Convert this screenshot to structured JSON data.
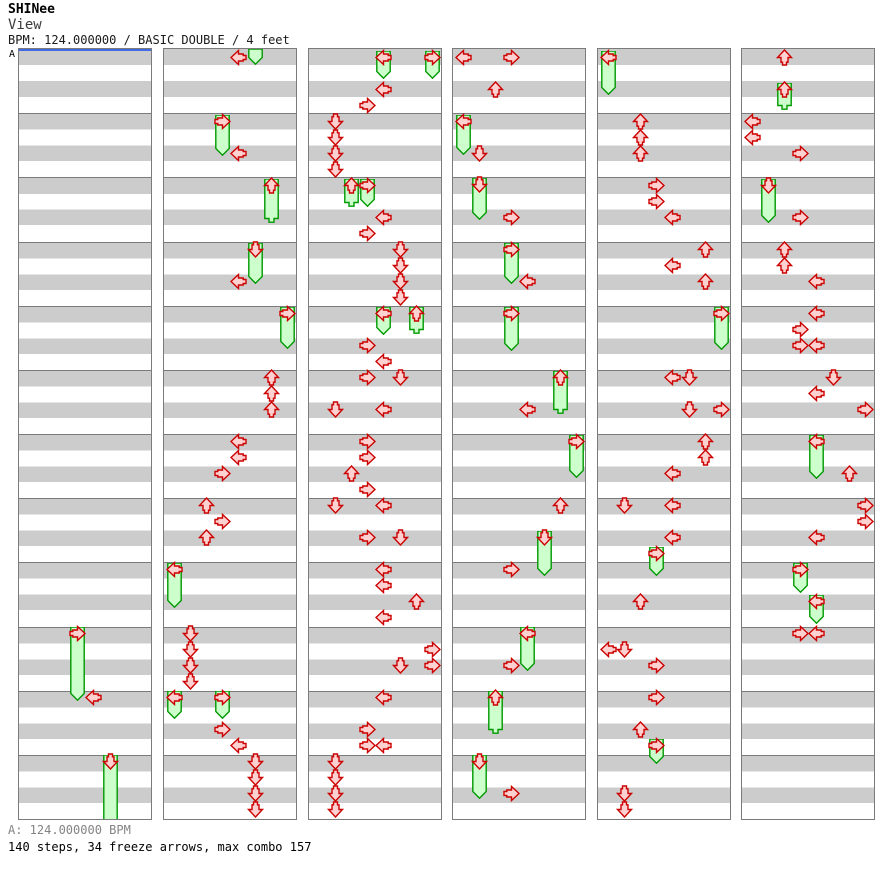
{
  "header": {
    "title": "SHINee",
    "subtitle": "View",
    "info": "BPM: 124.000000 / BASIC DOUBLE / 4 feet",
    "marker_label": "A"
  },
  "footer": {
    "bpm_line": "A: 124.000000 BPM",
    "stats_line": "140 steps, 34 freeze arrows, max combo 157"
  },
  "colors": {
    "arrow_fill": "#ffd2d2",
    "arrow_stroke": "#cc0000",
    "freeze_fill": "#ccffcc",
    "freeze_stroke": "#009900",
    "stripe_gray": "#cccccc",
    "panel_border": "#7b7b7b",
    "marker_blue": "#4169e1",
    "footer_gray": "#848484"
  },
  "legend": {
    "arrows_format": "[lane, direction, y_center_px]",
    "freezes_format": "[lane, direction, y_start_px, y_end_px, has_head_arrow]",
    "lanes": [
      "p1-left",
      "p1-down",
      "p1-up",
      "p1-right",
      "p2-left",
      "p2-down",
      "p2-up",
      "p2-right"
    ]
  },
  "panels": [
    {
      "arrows": [
        [
          4,
          "left",
          648
        ]
      ],
      "freezes": [
        [
          3,
          "right",
          584,
          652,
          true
        ],
        [
          5,
          "down",
          712,
          778,
          true
        ]
      ]
    },
    {
      "arrows": [
        [
          4,
          "left",
          8
        ],
        [
          4,
          "left",
          104
        ],
        [
          4,
          "left",
          232
        ],
        [
          6,
          "up",
          328
        ],
        [
          6,
          "up",
          344
        ],
        [
          6,
          "up",
          360
        ],
        [
          4,
          "left",
          392
        ],
        [
          4,
          "left",
          408
        ],
        [
          3,
          "right",
          424
        ],
        [
          2,
          "up",
          456
        ],
        [
          3,
          "right",
          472
        ],
        [
          2,
          "up",
          488
        ],
        [
          1,
          "down",
          584
        ],
        [
          1,
          "down",
          600
        ],
        [
          1,
          "down",
          616
        ],
        [
          1,
          "down",
          632
        ],
        [
          3,
          "right",
          680
        ],
        [
          4,
          "left",
          696
        ],
        [
          5,
          "down",
          712
        ],
        [
          5,
          "down",
          728
        ],
        [
          5,
          "down",
          744
        ],
        [
          5,
          "down",
          760
        ]
      ],
      "freezes": [
        [
          5,
          "down",
          0,
          16,
          false
        ],
        [
          3,
          "right",
          72,
          107,
          true
        ],
        [
          6,
          "up",
          136,
          174,
          true
        ],
        [
          5,
          "down",
          200,
          235,
          true
        ],
        [
          7,
          "right",
          264,
          300,
          true
        ],
        [
          0,
          "left",
          520,
          559,
          true
        ],
        [
          0,
          "left",
          648,
          670,
          true
        ],
        [
          3,
          "right",
          648,
          670,
          true
        ]
      ]
    },
    {
      "arrows": [
        [
          4,
          "left",
          40
        ],
        [
          3,
          "right",
          56
        ],
        [
          1,
          "down",
          72
        ],
        [
          1,
          "down",
          88
        ],
        [
          1,
          "down",
          104
        ],
        [
          1,
          "down",
          120
        ],
        [
          4,
          "left",
          168
        ],
        [
          3,
          "right",
          184
        ],
        [
          5,
          "down",
          200
        ],
        [
          5,
          "down",
          216
        ],
        [
          5,
          "down",
          232
        ],
        [
          5,
          "down",
          248
        ],
        [
          3,
          "right",
          296
        ],
        [
          4,
          "left",
          312
        ],
        [
          3,
          "right",
          328
        ],
        [
          5,
          "down",
          328
        ],
        [
          1,
          "down",
          360
        ],
        [
          4,
          "left",
          360
        ],
        [
          3,
          "right",
          392
        ],
        [
          3,
          "right",
          408
        ],
        [
          2,
          "up",
          424
        ],
        [
          3,
          "right",
          440
        ],
        [
          1,
          "down",
          456
        ],
        [
          4,
          "left",
          456
        ],
        [
          3,
          "right",
          488
        ],
        [
          5,
          "down",
          488
        ],
        [
          4,
          "left",
          520
        ],
        [
          4,
          "left",
          536
        ],
        [
          6,
          "up",
          552
        ],
        [
          4,
          "left",
          568
        ],
        [
          7,
          "right",
          600
        ],
        [
          5,
          "down",
          616
        ],
        [
          7,
          "right",
          616
        ],
        [
          4,
          "left",
          648
        ],
        [
          3,
          "right",
          680
        ],
        [
          3,
          "right",
          696
        ],
        [
          4,
          "left",
          696
        ],
        [
          1,
          "down",
          712
        ],
        [
          1,
          "down",
          728
        ],
        [
          1,
          "down",
          744
        ],
        [
          1,
          "down",
          760
        ]
      ],
      "freezes": [
        [
          4,
          "left",
          8,
          30,
          true
        ],
        [
          7,
          "right",
          8,
          30,
          true
        ],
        [
          2,
          "up",
          136,
          158,
          true
        ],
        [
          3,
          "right",
          136,
          158,
          true
        ],
        [
          4,
          "left",
          264,
          286,
          true
        ],
        [
          6,
          "up",
          264,
          285,
          true
        ]
      ]
    },
    {
      "arrows": [
        [
          0,
          "left",
          8
        ],
        [
          3,
          "right",
          8
        ],
        [
          2,
          "up",
          40
        ],
        [
          1,
          "down",
          104
        ],
        [
          3,
          "right",
          168
        ],
        [
          4,
          "left",
          232
        ],
        [
          4,
          "left",
          360
        ],
        [
          6,
          "up",
          456
        ],
        [
          3,
          "right",
          520
        ],
        [
          3,
          "right",
          616
        ],
        [
          3,
          "right",
          744
        ]
      ],
      "freezes": [
        [
          0,
          "left",
          72,
          106,
          true
        ],
        [
          1,
          "down",
          135,
          171,
          true
        ],
        [
          3,
          "right",
          200,
          235,
          true
        ],
        [
          3,
          "right",
          264,
          302,
          true
        ],
        [
          6,
          "up",
          328,
          365,
          true
        ],
        [
          7,
          "right",
          392,
          429,
          true
        ],
        [
          5,
          "down",
          488,
          527,
          true
        ],
        [
          4,
          "left",
          584,
          622,
          true
        ],
        [
          2,
          "up",
          648,
          685,
          true
        ],
        [
          1,
          "down",
          712,
          750,
          true
        ]
      ]
    },
    {
      "arrows": [
        [
          2,
          "up",
          72
        ],
        [
          2,
          "up",
          88
        ],
        [
          2,
          "up",
          104
        ],
        [
          3,
          "right",
          136
        ],
        [
          3,
          "right",
          152
        ],
        [
          4,
          "left",
          168
        ],
        [
          6,
          "up",
          200
        ],
        [
          4,
          "left",
          216
        ],
        [
          6,
          "up",
          232
        ],
        [
          4,
          "left",
          328
        ],
        [
          5,
          "down",
          328
        ],
        [
          5,
          "down",
          360
        ],
        [
          7,
          "right",
          360
        ],
        [
          6,
          "up",
          392
        ],
        [
          6,
          "up",
          408
        ],
        [
          4,
          "left",
          424
        ],
        [
          1,
          "down",
          456
        ],
        [
          4,
          "left",
          456
        ],
        [
          4,
          "left",
          488
        ],
        [
          2,
          "up",
          552
        ],
        [
          0,
          "left",
          600
        ],
        [
          1,
          "down",
          600
        ],
        [
          3,
          "right",
          616
        ],
        [
          3,
          "right",
          648
        ],
        [
          2,
          "up",
          680
        ],
        [
          1,
          "down",
          744
        ],
        [
          1,
          "down",
          760
        ]
      ],
      "freezes": [
        [
          0,
          "left",
          8,
          46,
          true
        ],
        [
          7,
          "right",
          264,
          301,
          true
        ],
        [
          3,
          "right",
          504,
          527,
          true
        ],
        [
          3,
          "right",
          696,
          715,
          true
        ]
      ]
    },
    {
      "arrows": [
        [
          2,
          "up",
          8
        ],
        [
          0,
          "left",
          72
        ],
        [
          0,
          "left",
          88
        ],
        [
          3,
          "right",
          104
        ],
        [
          3,
          "right",
          168
        ],
        [
          2,
          "up",
          200
        ],
        [
          2,
          "up",
          216
        ],
        [
          4,
          "left",
          232
        ],
        [
          4,
          "left",
          264
        ],
        [
          3,
          "right",
          280
        ],
        [
          3,
          "right",
          296
        ],
        [
          4,
          "left",
          296
        ],
        [
          5,
          "down",
          328
        ],
        [
          4,
          "left",
          344
        ],
        [
          7,
          "right",
          360
        ],
        [
          6,
          "up",
          424
        ],
        [
          7,
          "right",
          456
        ],
        [
          7,
          "right",
          472
        ],
        [
          4,
          "left",
          488
        ],
        [
          3,
          "right",
          584
        ],
        [
          4,
          "left",
          584
        ]
      ],
      "freezes": [
        [
          2,
          "up",
          40,
          61,
          true
        ],
        [
          1,
          "down",
          136,
          174,
          true
        ],
        [
          4,
          "left",
          392,
          430,
          true
        ],
        [
          3,
          "right",
          520,
          544,
          true
        ],
        [
          4,
          "left",
          552,
          575,
          true
        ]
      ]
    }
  ]
}
